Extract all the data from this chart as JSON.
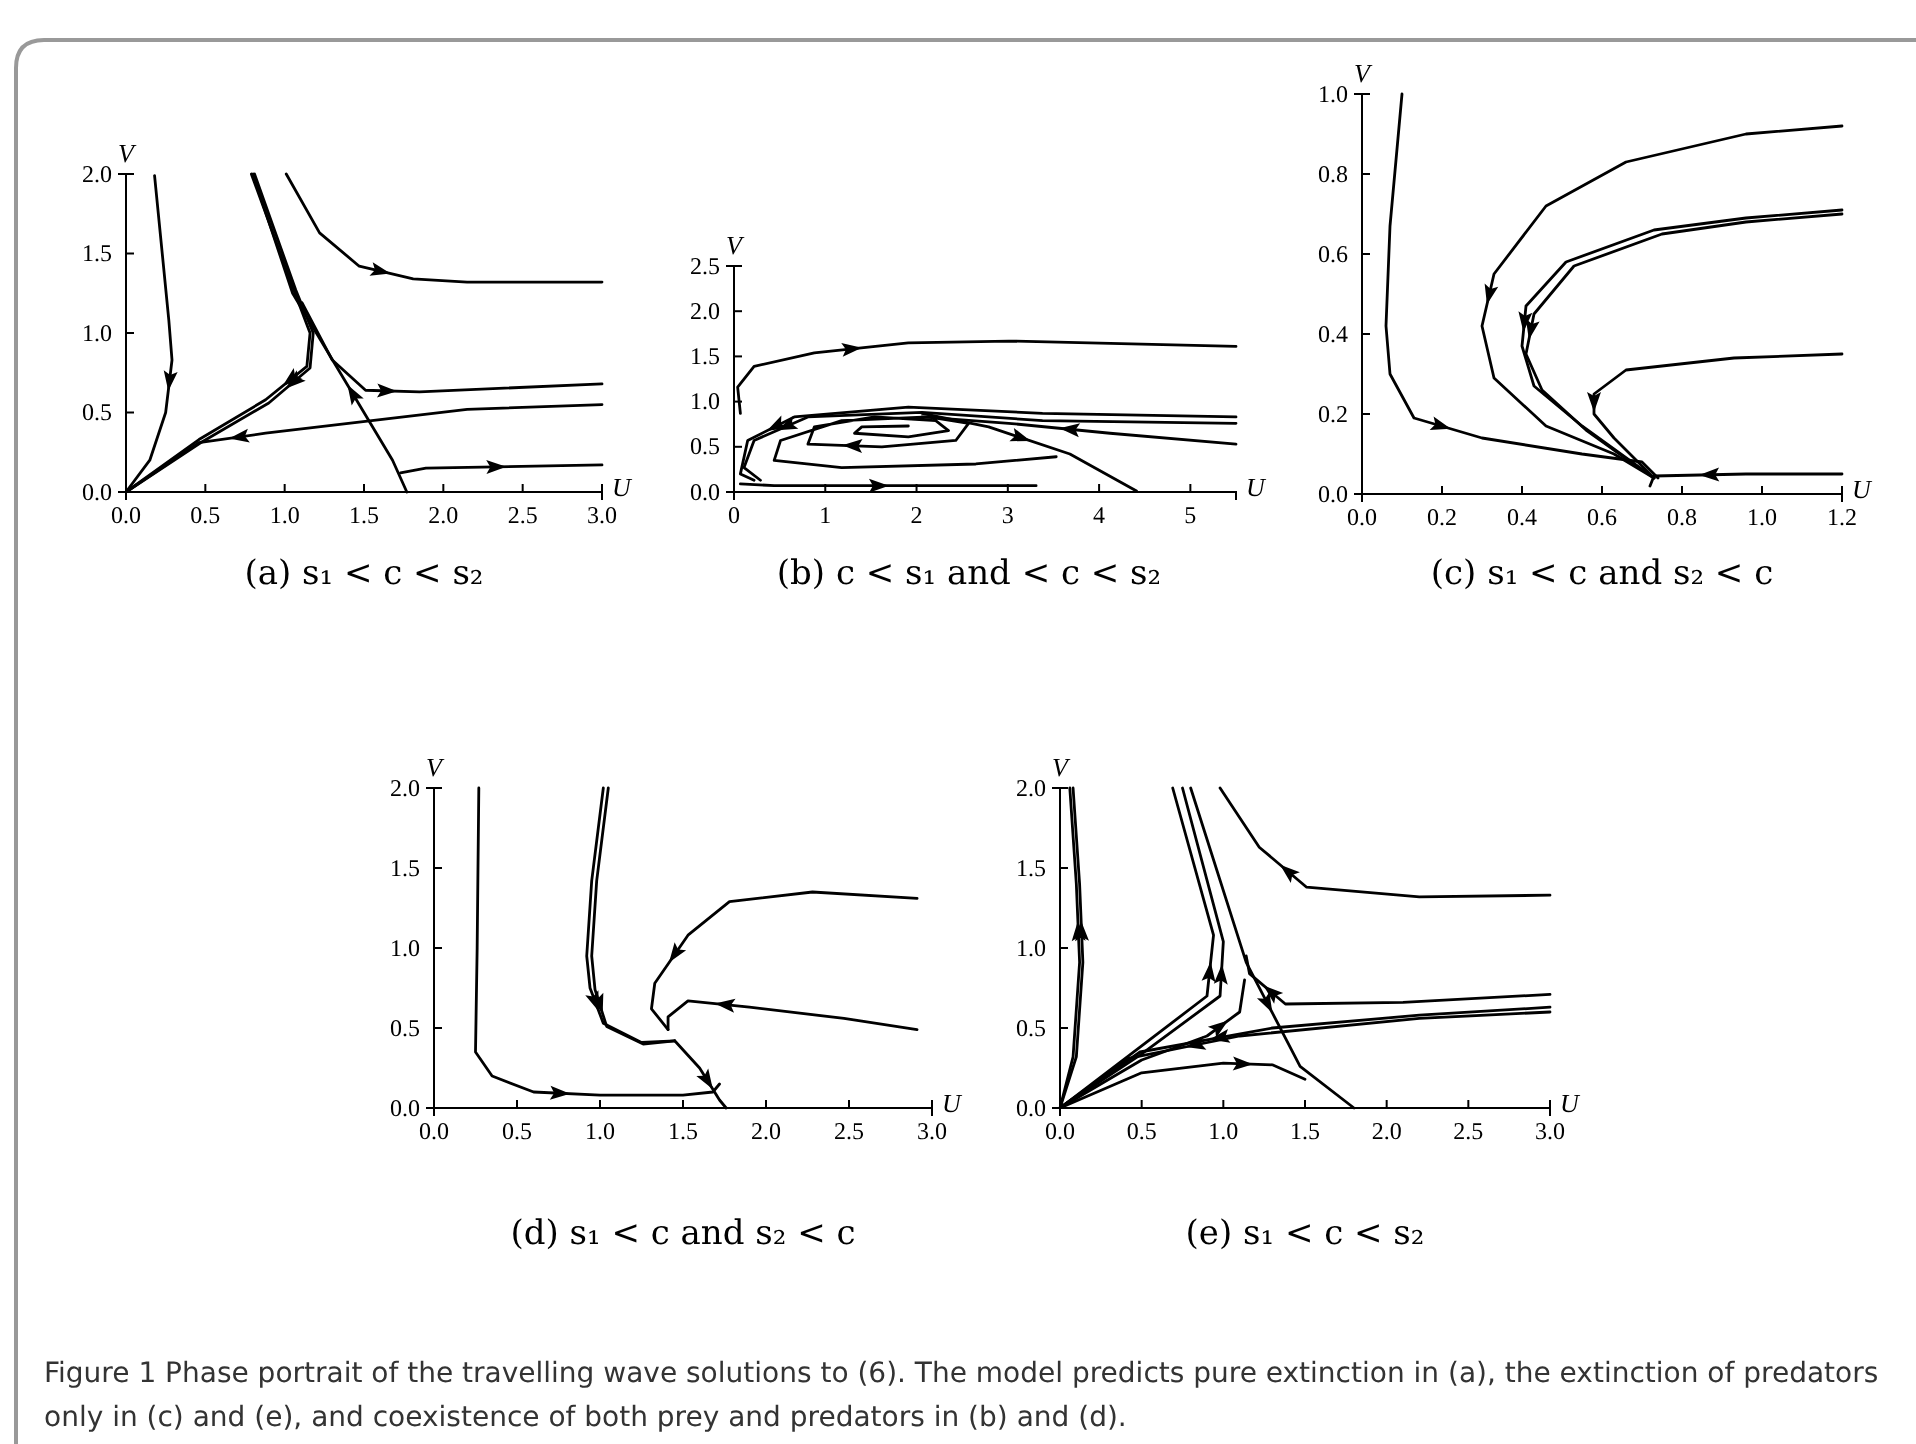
{
  "chart_data": [
    {
      "type": "line",
      "title": "(a) s₁ < c < s₂",
      "xlabel": "U",
      "ylabel": "V",
      "xlim": [
        0,
        3
      ],
      "ylim": [
        0,
        2
      ],
      "xticks": [
        {
          "value": 0,
          "label": "0.0"
        },
        {
          "value": 0.5,
          "label": "0.5"
        },
        {
          "value": 1,
          "label": "1.0"
        },
        {
          "value": 1.5,
          "label": "1.5"
        },
        {
          "value": 2,
          "label": "2.0"
        },
        {
          "value": 2.5,
          "label": "2.5"
        },
        {
          "value": 3,
          "label": "3.0"
        }
      ],
      "yticks": [
        {
          "value": 0,
          "label": "0.0"
        },
        {
          "value": 0.5,
          "label": "0.5"
        },
        {
          "value": 1,
          "label": "1.0"
        },
        {
          "value": 1.5,
          "label": "1.5"
        },
        {
          "value": 2,
          "label": "2.0"
        }
      ],
      "annotations": [
        "Figure 1  Phase portrait of the travelling wave solutions to (6). The model predicts pure extinction in (a), the extinction of predators only in (c) and (e), and coexistence of both prey and predators in (b) and (d)."
      ],
      "series": [
        {
          "color": "#000000",
          "x": [
            0.18,
            0.27,
            0.29,
            0.25,
            0.15,
            0
          ],
          "values": [
            1.99,
            1.08,
            0.83,
            0.5,
            0.2,
            0
          ]
        },
        {
          "color": "#000000",
          "x": [
            0.79,
            1.05,
            1.16,
            1.14,
            0.88,
            0.46,
            0
          ],
          "values": [
            2,
            1.29,
            1,
            0.79,
            0.58,
            0.33,
            0
          ]
        },
        {
          "color": "#000000",
          "x": [
            0.81,
            1.07,
            1.18,
            1.16,
            0.9,
            0.47,
            0
          ],
          "values": [
            2,
            1.27,
            1,
            0.78,
            0.56,
            0.31,
            0
          ]
        },
        {
          "color": "#000000",
          "x": [
            1.77,
            1.68,
            1.05,
            0.8
          ],
          "values": [
            0,
            0.2,
            1.25,
            2
          ]
        },
        {
          "color": "#000000",
          "x": [
            1.01,
            1.22,
            1.47,
            1.81,
            2.15,
            3
          ],
          "values": [
            2,
            1.63,
            1.42,
            1.34,
            1.32,
            1.32
          ]
        },
        {
          "color": "#000000",
          "x": [
            1.11,
            1.3,
            1.51,
            1.85,
            3
          ],
          "values": [
            1.19,
            0.83,
            0.64,
            0.63,
            0.68
          ]
        },
        {
          "color": "#000000",
          "x": [
            3,
            2.15,
            0.88,
            0.46,
            0
          ],
          "values": [
            0.55,
            0.52,
            0.37,
            0.31,
            0
          ]
        },
        {
          "color": "#000000",
          "x": [
            1.73,
            1.89,
            3
          ],
          "values": [
            0.12,
            0.15,
            0.17
          ]
        }
      ]
    },
    {
      "type": "line",
      "title": "(b) c < s₁ and < c < s₂",
      "xlabel": "U",
      "ylabel": "V",
      "xlim": [
        0,
        5.5
      ],
      "ylim": [
        0,
        2.5
      ],
      "xticks": [
        0,
        1,
        2,
        3,
        4,
        5
      ],
      "yticks": [
        {
          "value": 0,
          "label": "0.0"
        },
        {
          "value": 0.5,
          "label": "0.5"
        },
        {
          "value": 1,
          "label": "1.0"
        },
        {
          "value": 1.5,
          "label": "1.5"
        },
        {
          "value": 2,
          "label": "2.0"
        },
        {
          "value": 2.5,
          "label": "2.5"
        }
      ],
      "series": [
        {
          "color": "#000000",
          "x": [
            0.07,
            0.04,
            0.22,
            0.88,
            1.91,
            3.01,
            5.5
          ],
          "values": [
            0.87,
            1.16,
            1.39,
            1.54,
            1.65,
            1.67,
            1.61
          ]
        },
        {
          "color": "#000000",
          "x": [
            5.5,
            3.38,
            1.91,
            0.66,
            0.15,
            0.07,
            0.22
          ],
          "values": [
            0.83,
            0.87,
            0.94,
            0.83,
            0.57,
            0.2,
            0.13
          ]
        },
        {
          "color": "#000000",
          "x": [
            5.5,
            3.38,
            2.06,
            0.81,
            0.22,
            0.11,
            0.29
          ],
          "values": [
            0.76,
            0.79,
            0.88,
            0.83,
            0.57,
            0.27,
            0.13
          ]
        },
        {
          "color": "#000000",
          "x": [
            3.53,
            2.65,
            1.18,
            0.44,
            0.51,
            1.18,
            2.13,
            2.57,
            2.43,
            1.62,
            0.81,
            0.88,
            1.54,
            2.21,
            2.35,
            1.91,
            1.32,
            1.4,
            1.91
          ],
          "values": [
            0.39,
            0.31,
            0.27,
            0.35,
            0.57,
            0.79,
            0.83,
            0.76,
            0.57,
            0.5,
            0.53,
            0.72,
            0.83,
            0.79,
            0.68,
            0.61,
            0.65,
            0.72,
            0.73
          ]
        },
        {
          "color": "#000000",
          "x": [
            5.5,
            4.12,
            3.01,
            2.06
          ],
          "values": [
            0.53,
            0.65,
            0.76,
            0.83
          ]
        },
        {
          "color": "#000000",
          "x": [
            2.06,
            2.79,
            3.68,
            4.41
          ],
          "values": [
            0.87,
            0.72,
            0.42,
            0.01
          ]
        },
        {
          "color": "#000000",
          "x": [
            0.07,
            0.44,
            3.31
          ],
          "values": [
            0.09,
            0.07,
            0.07
          ]
        }
      ]
    },
    {
      "type": "line",
      "title": "(c) s₁ < c and s₂ < c",
      "xlabel": "U",
      "ylabel": "V",
      "xlim": [
        0,
        1.2
      ],
      "ylim": [
        0,
        1
      ],
      "xticks": [
        {
          "value": 0,
          "label": "0.0"
        },
        {
          "value": 0.2,
          "label": "0.2"
        },
        {
          "value": 0.4,
          "label": "0.4"
        },
        {
          "value": 0.6,
          "label": "0.6"
        },
        {
          "value": 0.8,
          "label": "0.8"
        },
        {
          "value": 1,
          "label": "1.0"
        },
        {
          "value": 1.2,
          "label": "1.2"
        }
      ],
      "yticks": [
        {
          "value": 0,
          "label": "0.0"
        },
        {
          "value": 0.2,
          "label": "0.2"
        },
        {
          "value": 0.4,
          "label": "0.4"
        },
        {
          "value": 0.6,
          "label": "0.6"
        },
        {
          "value": 0.8,
          "label": "0.8"
        },
        {
          "value": 1,
          "label": "1.0"
        }
      ],
      "series": [
        {
          "color": "#000000",
          "x": [
            0.1,
            0.07,
            0.06,
            0.07,
            0.13,
            0.3,
            0.55,
            0.7,
            0.74
          ],
          "values": [
            1,
            0.67,
            0.42,
            0.3,
            0.19,
            0.14,
            0.1,
            0.08,
            0.04
          ]
        },
        {
          "color": "#000000",
          "x": [
            1.2,
            0.96,
            0.66,
            0.46,
            0.33,
            0.3,
            0.33,
            0.46,
            0.63,
            0.73
          ],
          "values": [
            0.92,
            0.9,
            0.83,
            0.72,
            0.55,
            0.42,
            0.29,
            0.17,
            0.1,
            0.04
          ]
        },
        {
          "color": "#000000",
          "x": [
            1.2,
            0.96,
            0.73,
            0.51,
            0.41,
            0.4,
            0.43,
            0.55,
            0.73
          ],
          "values": [
            0.71,
            0.69,
            0.66,
            0.58,
            0.47,
            0.37,
            0.27,
            0.17,
            0.04
          ]
        },
        {
          "color": "#000000",
          "x": [
            1.2,
            0.96,
            0.75,
            0.53,
            0.43,
            0.41,
            0.45,
            0.56,
            0.7
          ],
          "values": [
            0.7,
            0.68,
            0.65,
            0.57,
            0.45,
            0.35,
            0.26,
            0.16,
            0.06
          ]
        },
        {
          "color": "#000000",
          "x": [
            1.2,
            0.93,
            0.66,
            0.58,
            0.58,
            0.63,
            0.73
          ],
          "values": [
            0.35,
            0.34,
            0.31,
            0.25,
            0.2,
            0.14,
            0.04
          ]
        },
        {
          "color": "#000000",
          "x": [
            1.2,
            0.96,
            0.73,
            0.72
          ],
          "values": [
            0.05,
            0.05,
            0.045,
            0.02
          ]
        }
      ]
    },
    {
      "type": "line",
      "title": "(d) s₁ < c and s₂ < c",
      "xlabel": "U",
      "ylabel": "V",
      "xlim": [
        0,
        3
      ],
      "ylim": [
        0,
        2
      ],
      "xticks": [
        {
          "value": 0,
          "label": "0.0"
        },
        {
          "value": 0.5,
          "label": "0.5"
        },
        {
          "value": 1,
          "label": "1.0"
        },
        {
          "value": 1.5,
          "label": "1.5"
        },
        {
          "value": 2,
          "label": "2.0"
        },
        {
          "value": 2.5,
          "label": "2.5"
        },
        {
          "value": 3,
          "label": "3.0"
        }
      ],
      "yticks": [
        {
          "value": 0,
          "label": "0.0"
        },
        {
          "value": 0.5,
          "label": "0.5"
        },
        {
          "value": 1,
          "label": "1.0"
        },
        {
          "value": 1.5,
          "label": "1.5"
        },
        {
          "value": 2,
          "label": "2.0"
        }
      ],
      "series": [
        {
          "color": "#000000",
          "x": [
            0.27,
            0.26,
            0.25,
            0.35,
            0.6,
            1,
            1.5,
            1.68,
            1.72
          ],
          "values": [
            2,
            1,
            0.35,
            0.2,
            0.1,
            0.08,
            0.08,
            0.1,
            0.15
          ]
        },
        {
          "color": "#000000",
          "x": [
            1.02,
            0.95,
            0.92,
            0.94,
            1.02,
            1.25,
            1.45
          ],
          "values": [
            2,
            1.42,
            0.95,
            0.75,
            0.53,
            0.41,
            0.42
          ]
        },
        {
          "color": "#000000",
          "x": [
            1.05,
            0.98,
            0.95,
            0.97,
            1.04,
            1.26,
            1.45
          ],
          "values": [
            2,
            1.42,
            0.95,
            0.74,
            0.51,
            0.4,
            0.42
          ]
        },
        {
          "color": "#000000",
          "x": [
            2.91,
            2.28,
            1.78,
            1.53,
            1.33,
            1.31,
            1.41
          ],
          "values": [
            1.31,
            1.35,
            1.29,
            1.08,
            0.78,
            0.62,
            0.49
          ]
        },
        {
          "color": "#000000",
          "x": [
            2.91,
            2.47,
            1.9,
            1.53,
            1.41,
            1.41
          ],
          "values": [
            0.49,
            0.56,
            0.63,
            0.67,
            0.57,
            0.49
          ]
        },
        {
          "color": "#000000",
          "x": [
            1.45,
            1.6,
            1.72,
            1.76
          ],
          "values": [
            0.42,
            0.25,
            0.05,
            0
          ]
        }
      ]
    },
    {
      "type": "line",
      "title": "(e) s₁ < c < s₂",
      "xlabel": "U",
      "ylabel": "V",
      "xlim": [
        0,
        3
      ],
      "ylim": [
        0,
        2
      ],
      "xticks": [
        {
          "value": 0,
          "label": "0.0"
        },
        {
          "value": 0.5,
          "label": "0.5"
        },
        {
          "value": 1,
          "label": "1.0"
        },
        {
          "value": 1.5,
          "label": "1.5"
        },
        {
          "value": 2,
          "label": "2.0"
        },
        {
          "value": 2.5,
          "label": "2.5"
        },
        {
          "value": 3,
          "label": "3.0"
        }
      ],
      "yticks": [
        {
          "value": 0,
          "label": "0.0"
        },
        {
          "value": 0.5,
          "label": "0.5"
        },
        {
          "value": 1,
          "label": "1.0"
        },
        {
          "value": 1.5,
          "label": "1.5"
        },
        {
          "value": 2,
          "label": "2.0"
        }
      ],
      "series": [
        {
          "color": "#000000",
          "x": [
            0,
            0.08,
            0.12,
            0.1,
            0.06
          ],
          "values": [
            0,
            0.32,
            0.91,
            1.4,
            2
          ]
        },
        {
          "color": "#000000",
          "x": [
            0,
            0.1,
            0.14,
            0.12,
            0.08
          ],
          "values": [
            0,
            0.32,
            0.91,
            1.4,
            2
          ]
        },
        {
          "color": "#000000",
          "x": [
            0,
            0.49,
            0.9,
            0.94,
            0.69
          ],
          "values": [
            0,
            0.38,
            0.7,
            1.08,
            2
          ]
        },
        {
          "color": "#000000",
          "x": [
            0,
            0.49,
            0.98,
            1,
            0.75
          ],
          "values": [
            0,
            0.33,
            0.7,
            1.04,
            2
          ]
        },
        {
          "color": "#000000",
          "x": [
            0.8,
            1.14,
            1.47,
            1.8
          ],
          "values": [
            2,
            0.91,
            0.26,
            0
          ]
        },
        {
          "color": "#000000",
          "x": [
            3,
            2.2,
            1.51,
            1.22,
            0.98
          ],
          "values": [
            1.33,
            1.32,
            1.38,
            1.63,
            2
          ]
        },
        {
          "color": "#000000",
          "x": [
            3,
            2.1,
            1.38,
            1.16,
            1.14
          ],
          "values": [
            0.71,
            0.66,
            0.65,
            0.84,
            0.95
          ]
        },
        {
          "color": "#000000",
          "x": [
            3,
            2.2,
            1.3,
            0.49,
            0
          ],
          "values": [
            0.63,
            0.58,
            0.5,
            0.35,
            0
          ]
        },
        {
          "color": "#000000",
          "x": [
            3,
            2.2,
            1.1,
            0.42,
            0
          ],
          "values": [
            0.6,
            0.56,
            0.45,
            0.31,
            0
          ]
        },
        {
          "color": "#000000",
          "x": [
            0,
            0.5,
            1,
            1.3,
            1.5
          ],
          "values": [
            0,
            0.22,
            0.28,
            0.27,
            0.18
          ]
        },
        {
          "color": "#000000",
          "x": [
            0,
            0.5,
            0.9,
            1.1,
            1.13
          ],
          "values": [
            0,
            0.3,
            0.45,
            0.6,
            0.8
          ]
        }
      ]
    }
  ]
}
